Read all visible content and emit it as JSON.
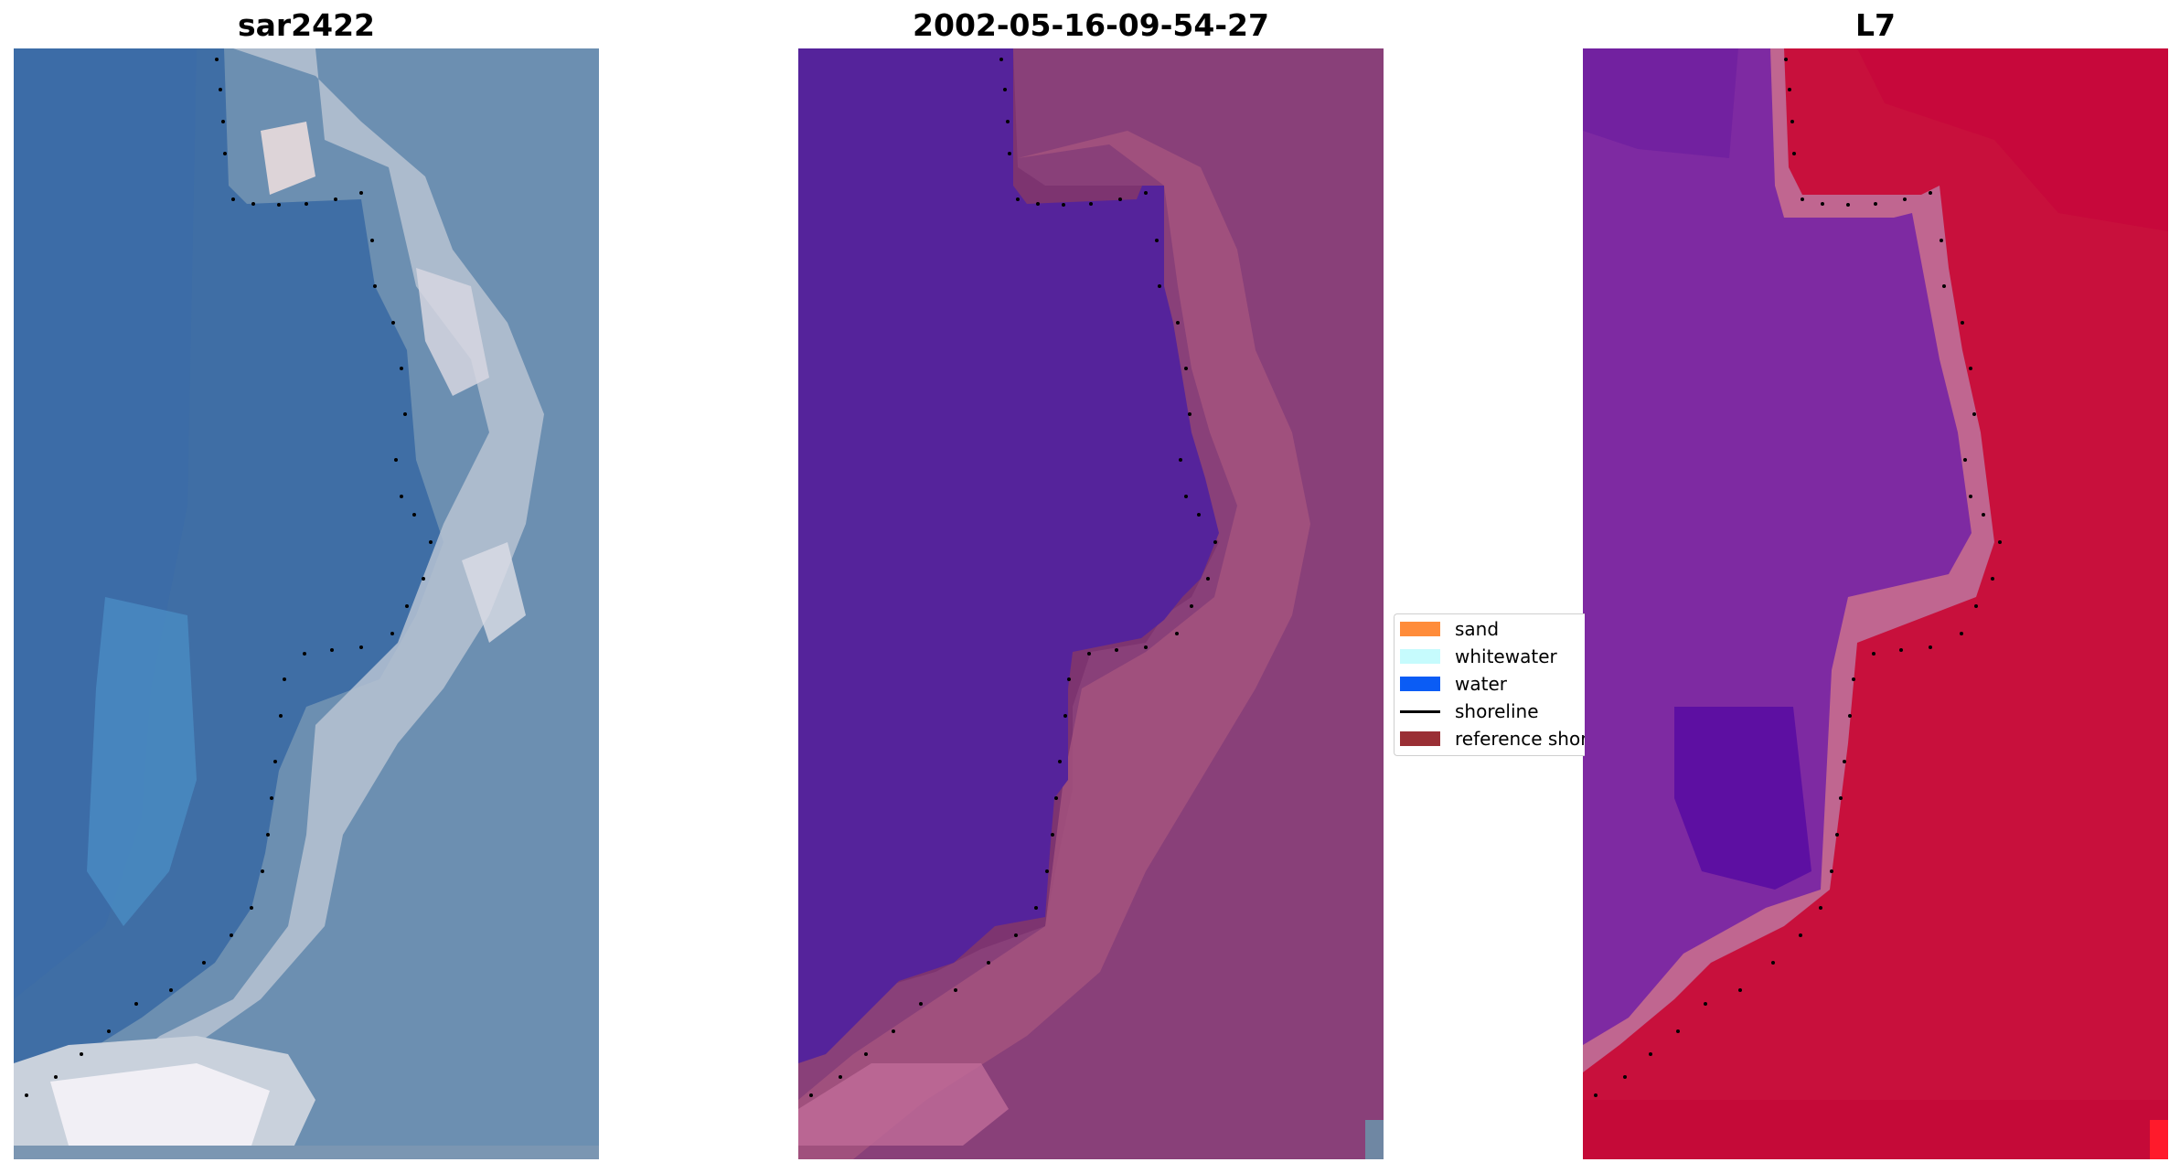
{
  "panels": [
    {
      "title": "sar2422",
      "palette": "rgb",
      "water_icon": "satellite-rgb-image"
    },
    {
      "title": "2002-05-16-09-54-27",
      "palette": "classified",
      "water_icon": "classified-image"
    },
    {
      "title": "L7",
      "palette": "index",
      "water_icon": "index-image"
    }
  ],
  "legend": {
    "items": [
      {
        "label": "sand",
        "color": "#ff8c3a",
        "kind": "patch"
      },
      {
        "label": "whitewater",
        "color": "#c6fbfd",
        "kind": "patch"
      },
      {
        "label": "water",
        "color": "#0a5cf5",
        "kind": "patch"
      },
      {
        "label": "shoreline",
        "color": "#000000",
        "kind": "line"
      },
      {
        "label": "reference shoreline",
        "color": "#9a2f35",
        "kind": "patch"
      }
    ]
  },
  "colors": {
    "rgb_water": "#3f6ea5",
    "rgb_sand": "#8fa3b8",
    "rgb_surf": "#e6e4ea",
    "classified_water": "#55239b",
    "classified_land": "#7d3470",
    "classified_land_light": "#a8557f",
    "index_water": "#7e2aa2",
    "index_land": "#c8103c",
    "index_edge": "#c06690",
    "shoreline_dots": "#000000"
  }
}
